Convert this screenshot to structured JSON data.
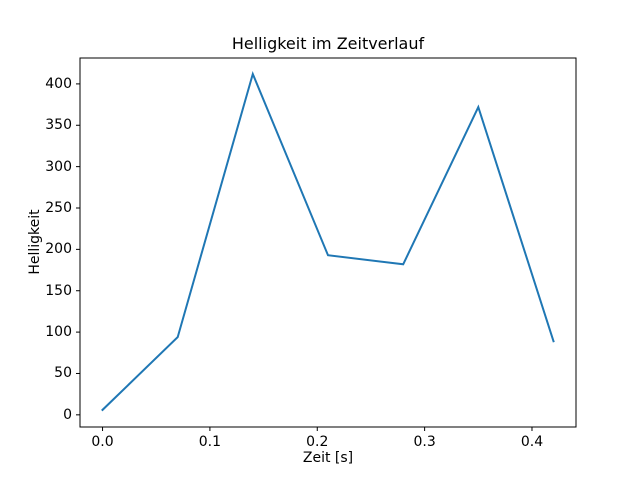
{
  "figure": {
    "background": "#ffffff",
    "text_color": "#000000",
    "spine_color": "#000000"
  },
  "chart_data": {
    "type": "line",
    "title": "Helligkeit im Zeitverlauf",
    "xlabel": "Zeit [s]",
    "ylabel": "Helligkeit",
    "x": [
      0.0,
      0.07,
      0.14,
      0.21,
      0.28,
      0.35,
      0.42
    ],
    "values": [
      6,
      94,
      412,
      193,
      182,
      372,
      89
    ],
    "line_color": "#1f77b4",
    "xlim": [
      -0.021,
      0.441
    ],
    "ylim": [
      -14.7,
      431.3
    ],
    "xticks": {
      "values": [
        0.0,
        0.1,
        0.2,
        0.3,
        0.4
      ],
      "labels": [
        "0.0",
        "0.1",
        "0.2",
        "0.3",
        "0.4"
      ]
    },
    "yticks": {
      "values": [
        0,
        50,
        100,
        150,
        200,
        250,
        300,
        350,
        400
      ],
      "labels": [
        "0",
        "50",
        "100",
        "150",
        "200",
        "250",
        "300",
        "350",
        "400"
      ]
    },
    "grid": false,
    "legend": "none",
    "markers": "none"
  }
}
